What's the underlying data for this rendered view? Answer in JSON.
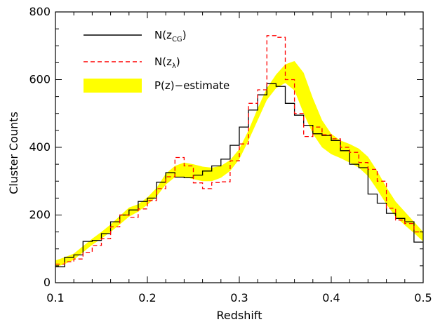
{
  "chart_data": {
    "type": "line",
    "title": "",
    "xlabel": "Redshift",
    "ylabel": "Cluster Counts",
    "xlim": [
      0.1,
      0.5
    ],
    "ylim": [
      0,
      800
    ],
    "grid": false,
    "legend_position": "top-left",
    "x_ticks": [
      0.1,
      0.2,
      0.3,
      0.4,
      0.5
    ],
    "x_tick_labels": [
      "0.1",
      "0.2",
      "0.3",
      "0.4",
      "0.5"
    ],
    "y_ticks": [
      0,
      200,
      400,
      600,
      800
    ],
    "y_tick_labels": [
      "0",
      "200",
      "400",
      "600",
      "800"
    ],
    "bin_edges": [
      0.1,
      0.11,
      0.12,
      0.13,
      0.14,
      0.15,
      0.16,
      0.17,
      0.18,
      0.19,
      0.2,
      0.21,
      0.22,
      0.23,
      0.24,
      0.25,
      0.26,
      0.27,
      0.28,
      0.29,
      0.3,
      0.31,
      0.32,
      0.33,
      0.34,
      0.35,
      0.36,
      0.37,
      0.38,
      0.39,
      0.4,
      0.41,
      0.42,
      0.43,
      0.44,
      0.45,
      0.46,
      0.47,
      0.48,
      0.49,
      0.5
    ],
    "series": [
      {
        "name": "N(z_CG)",
        "label_main": "N(z",
        "label_sub": "CG",
        "label_end": ")",
        "style": "step",
        "color": "#000000",
        "dash": "solid",
        "values": [
          47,
          75,
          82,
          122,
          125,
          145,
          180,
          200,
          215,
          240,
          250,
          297,
          325,
          312,
          310,
          318,
          330,
          345,
          365,
          406,
          460,
          510,
          555,
          588,
          580,
          530,
          495,
          465,
          440,
          435,
          420,
          390,
          350,
          340,
          262,
          235,
          205,
          190,
          180,
          120
        ]
      },
      {
        "name": "N(z_λ)",
        "label_main": "N(z",
        "label_sub": "λ",
        "label_end": ")",
        "style": "step",
        "color": "#ff0000",
        "dash": "dashed",
        "values": [
          55,
          62,
          70,
          90,
          110,
          130,
          165,
          200,
          193,
          218,
          243,
          278,
          313,
          370,
          345,
          295,
          278,
          296,
          298,
          360,
          410,
          530,
          570,
          730,
          725,
          600,
          500,
          432,
          460,
          437,
          425,
          400,
          385,
          355,
          335,
          300,
          220,
          185,
          175,
          150
        ]
      },
      {
        "name": "P(z)-estimate",
        "label_main": "P(z)−estimate",
        "style": "band",
        "color": "#ffff00",
        "x": [
          0.1,
          0.11,
          0.12,
          0.13,
          0.14,
          0.15,
          0.16,
          0.17,
          0.18,
          0.19,
          0.2,
          0.21,
          0.22,
          0.23,
          0.24,
          0.25,
          0.26,
          0.27,
          0.28,
          0.29,
          0.3,
          0.31,
          0.32,
          0.33,
          0.34,
          0.35,
          0.36,
          0.37,
          0.38,
          0.39,
          0.4,
          0.41,
          0.42,
          0.43,
          0.44,
          0.45,
          0.46,
          0.47,
          0.48,
          0.49,
          0.5
        ],
        "lower": [
          46,
          55,
          68,
          90,
          112,
          130,
          150,
          172,
          195,
          210,
          230,
          255,
          290,
          312,
          313,
          306,
          300,
          300,
          310,
          330,
          365,
          420,
          480,
          540,
          575,
          590,
          568,
          500,
          440,
          400,
          380,
          368,
          355,
          340,
          315,
          275,
          232,
          195,
          170,
          147,
          122
        ],
        "upper": [
          66,
          75,
          86,
          108,
          130,
          150,
          172,
          197,
          222,
          232,
          252,
          280,
          322,
          345,
          355,
          350,
          343,
          340,
          345,
          362,
          395,
          450,
          515,
          575,
          615,
          645,
          655,
          620,
          545,
          480,
          440,
          420,
          410,
          396,
          372,
          330,
          282,
          240,
          210,
          180,
          150
        ]
      }
    ]
  }
}
